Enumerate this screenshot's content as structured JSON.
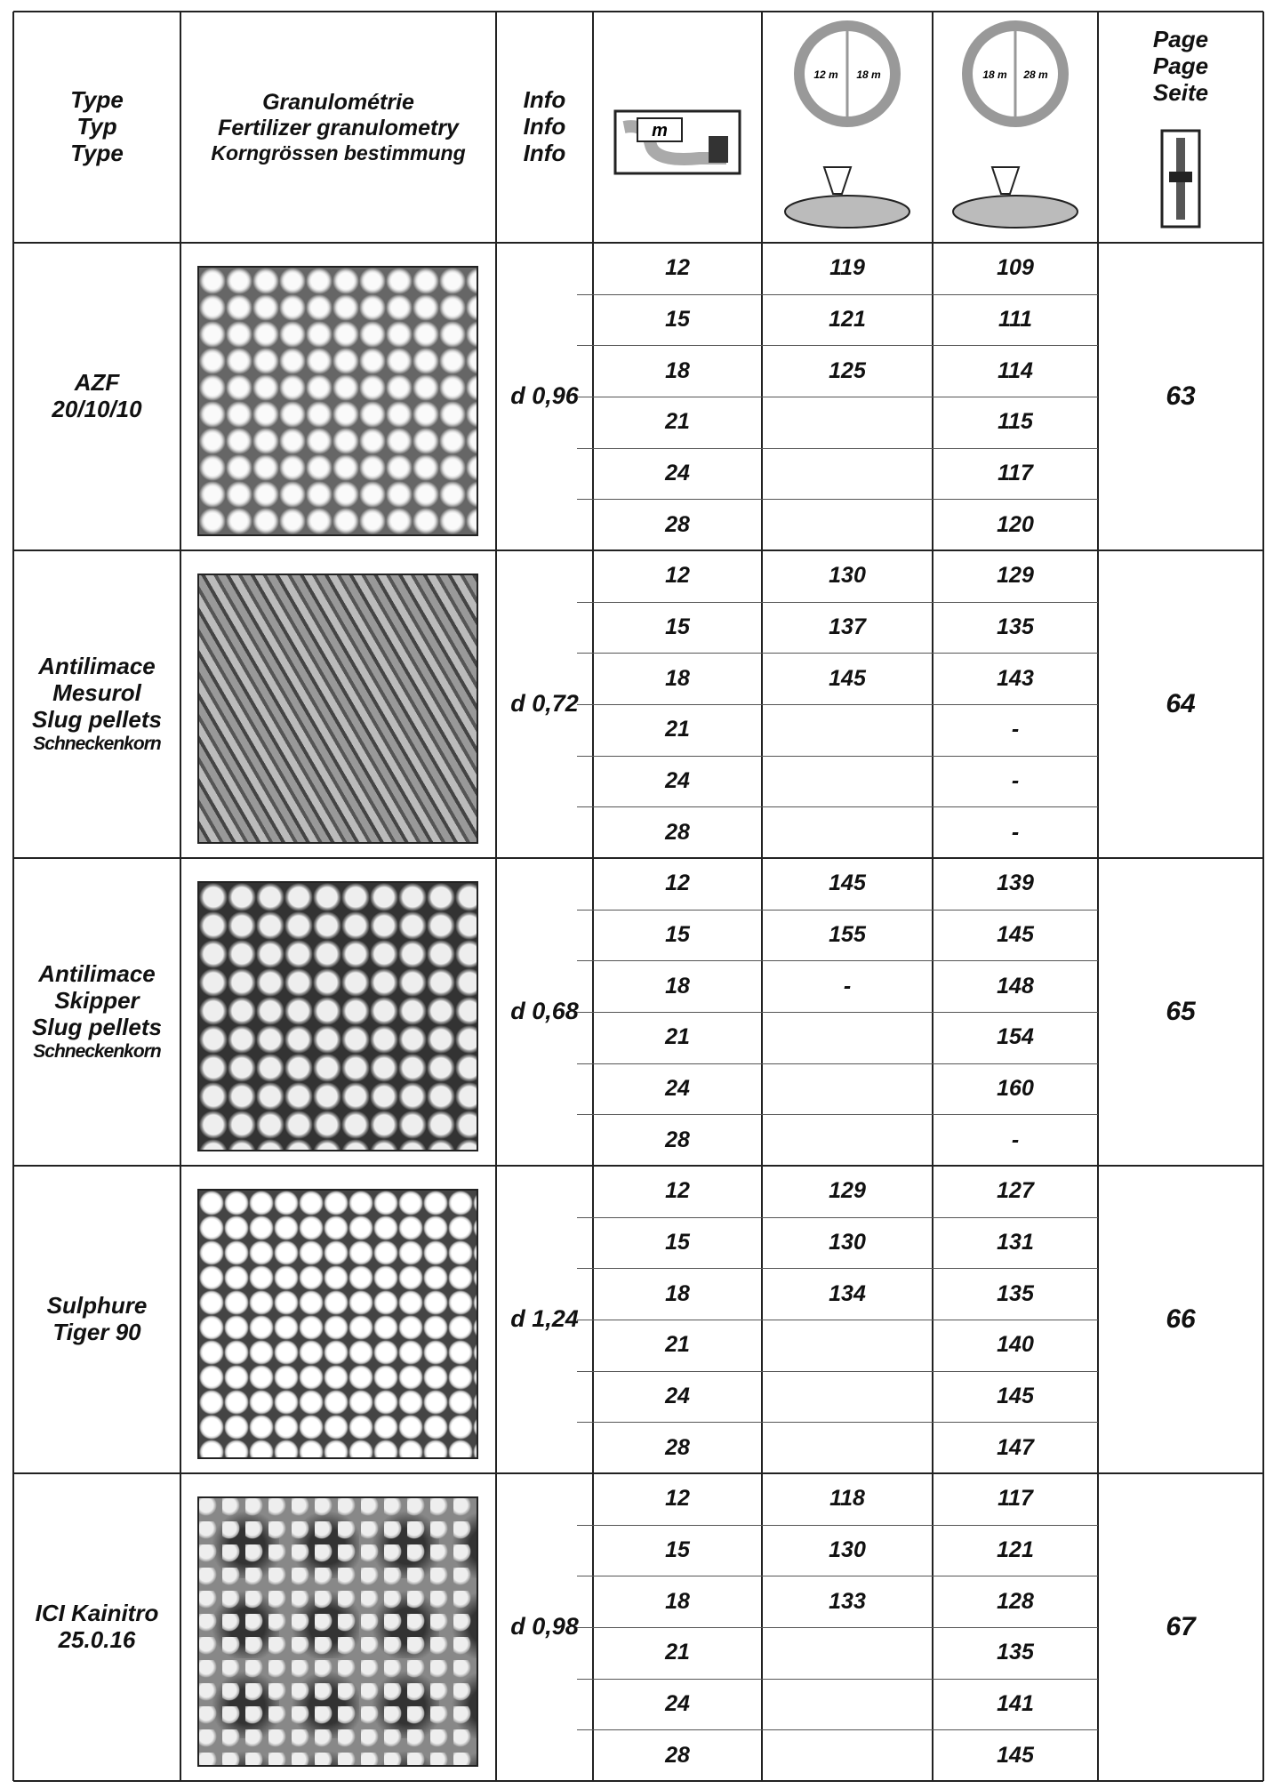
{
  "header": {
    "type": [
      "Type",
      "Typ",
      "Type"
    ],
    "granulometry": [
      "Granulométrie",
      "Fertilizer granulometry",
      "Korngrössen bestimmung"
    ],
    "info": [
      "Info",
      "Info",
      "Info"
    ],
    "width_icon": "m",
    "disc_a": [
      "12 m",
      "18 m"
    ],
    "disc_b": [
      "18 m",
      "28 m"
    ],
    "page": [
      "Page",
      "Page",
      "Seite"
    ]
  },
  "rows": [
    {
      "type": [
        "AZF",
        "20/10/10"
      ],
      "density": "d 0,96",
      "widths": [
        12,
        15,
        18,
        21,
        24,
        28
      ],
      "disc_a": [
        119,
        121,
        125,
        null,
        null,
        null
      ],
      "disc_b": [
        109,
        111,
        114,
        115,
        117,
        120
      ],
      "page": 63
    },
    {
      "type": [
        "Antilimace",
        "Mesurol",
        "Slug pellets",
        "Schneckenkorn"
      ],
      "density": "d 0,72",
      "widths": [
        12,
        15,
        18,
        21,
        24,
        28
      ],
      "disc_a": [
        130,
        137,
        145,
        null,
        null,
        null
      ],
      "disc_b": [
        129,
        135,
        143,
        "-",
        "-",
        "-"
      ],
      "page": 64
    },
    {
      "type": [
        "Antilimace",
        "Skipper",
        "Slug pellets",
        "Schneckenkorn"
      ],
      "density": "d 0,68",
      "widths": [
        12,
        15,
        18,
        21,
        24,
        28
      ],
      "disc_a": [
        145,
        155,
        "-",
        null,
        null,
        null
      ],
      "disc_b": [
        139,
        145,
        148,
        154,
        160,
        "-"
      ],
      "page": 65
    },
    {
      "type": [
        "Sulphure",
        "Tiger 90"
      ],
      "density": "d 1,24",
      "widths": [
        12,
        15,
        18,
        21,
        24,
        28
      ],
      "disc_a": [
        129,
        130,
        134,
        null,
        null,
        null
      ],
      "disc_b": [
        127,
        131,
        135,
        140,
        145,
        147
      ],
      "page": 66
    },
    {
      "type": [
        "ICI Kainitro",
        "25.0.16"
      ],
      "density": "d 0,98",
      "widths": [
        12,
        15,
        18,
        21,
        24,
        28
      ],
      "disc_a": [
        118,
        130,
        133,
        null,
        null,
        null
      ],
      "disc_b": [
        117,
        121,
        128,
        135,
        141,
        145
      ],
      "page": 67
    }
  ]
}
